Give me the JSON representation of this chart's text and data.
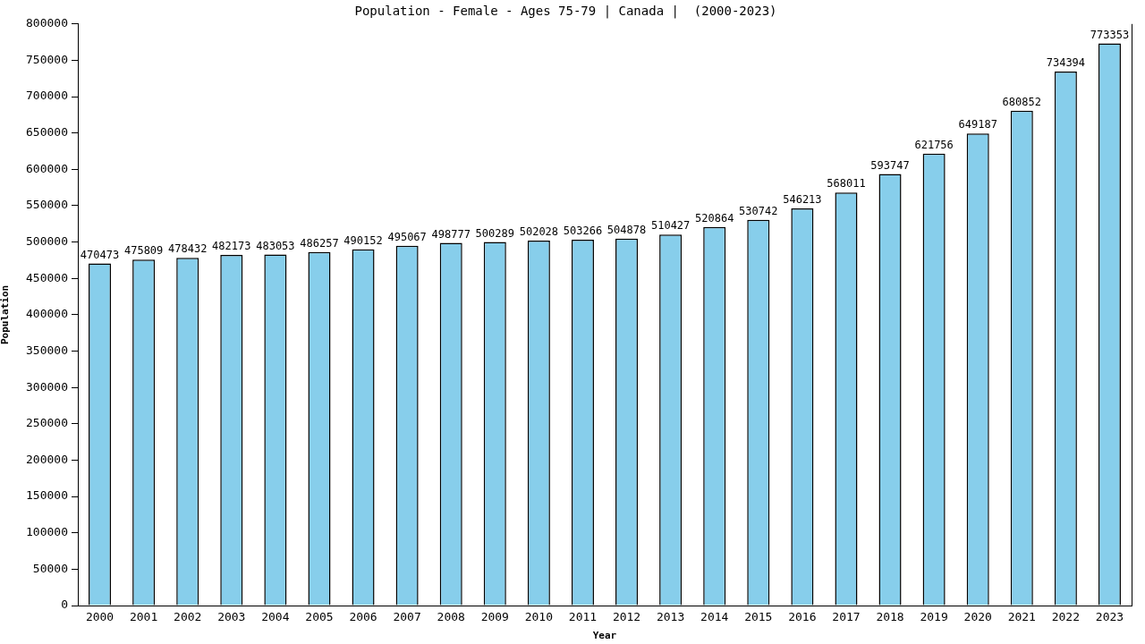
{
  "chart_data": {
    "type": "bar",
    "title": "Population - Female - Ages 75-79 | Canada |  (2000-2023)",
    "xlabel": "Year",
    "ylabel": "Population",
    "categories": [
      "2000",
      "2001",
      "2002",
      "2003",
      "2004",
      "2005",
      "2006",
      "2007",
      "2008",
      "2009",
      "2010",
      "2011",
      "2012",
      "2013",
      "2014",
      "2015",
      "2016",
      "2017",
      "2018",
      "2019",
      "2020",
      "2021",
      "2022",
      "2023"
    ],
    "values": [
      470473,
      475809,
      478432,
      482173,
      483053,
      486257,
      490152,
      495067,
      498777,
      500289,
      502028,
      503266,
      504878,
      510427,
      520864,
      530742,
      546213,
      568011,
      593747,
      621756,
      649187,
      680852,
      734394,
      773353
    ],
    "color": "#87ceeb",
    "ylim": [
      0,
      800000
    ],
    "yticks": [
      0,
      50000,
      100000,
      150000,
      200000,
      250000,
      300000,
      350000,
      400000,
      450000,
      500000,
      550000,
      600000,
      650000,
      700000,
      750000,
      800000
    ],
    "data_labels": true
  }
}
